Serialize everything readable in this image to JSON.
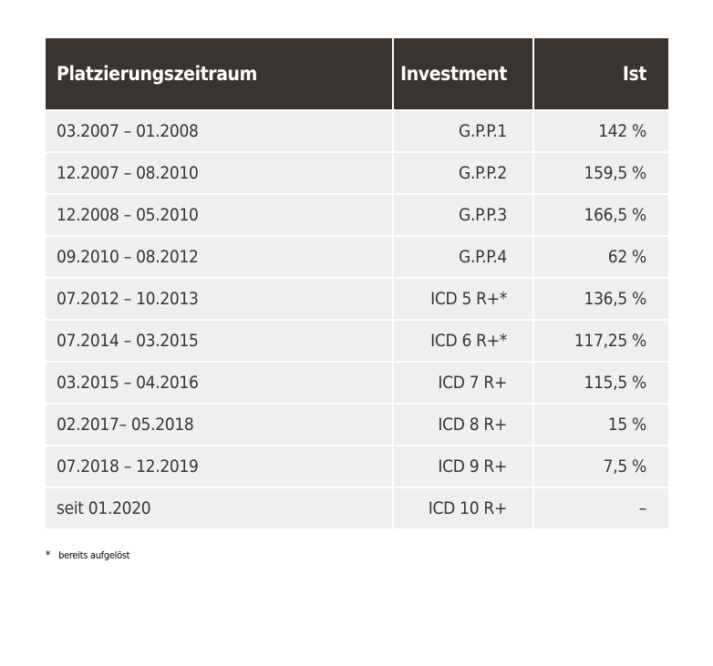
{
  "table": {
    "headers": {
      "period": "Platzierungszeitraum",
      "investment": "Investment",
      "actual": "Ist"
    },
    "rows": [
      {
        "period": "03.2007 – 01.2008",
        "investment": "G.P.P.1",
        "actual": "142 %"
      },
      {
        "period": "12.2007 – 08.2010",
        "investment": "G.P.P.2",
        "actual": "159,5 %"
      },
      {
        "period": "12.2008 – 05.2010",
        "investment": "G.P.P.3",
        "actual": "166,5 %"
      },
      {
        "period": "09.2010 – 08.2012",
        "investment": "G.P.P.4",
        "actual": "62 %"
      },
      {
        "period": "07.2012 – 10.2013",
        "investment": "ICD 5 R+*",
        "actual": "136,5 %"
      },
      {
        "period": "07.2014 – 03.2015",
        "investment": "ICD 6 R+*",
        "actual": "117,25 %"
      },
      {
        "period": "03.2015 – 04.2016",
        "investment": "ICD 7 R+",
        "actual": "115,5 %"
      },
      {
        "period": "02.2017– 05.2018",
        "investment": "ICD 8 R+",
        "actual": "15 %"
      },
      {
        "period": "07.2018 – 12.2019",
        "investment": "ICD 9 R+",
        "actual": "7,5 %"
      },
      {
        "period": "seit 01.2020",
        "investment": "ICD 10 R+",
        "actual": "–"
      }
    ]
  },
  "footnote": {
    "marker": "*",
    "text": "bereits aufgelöst"
  }
}
